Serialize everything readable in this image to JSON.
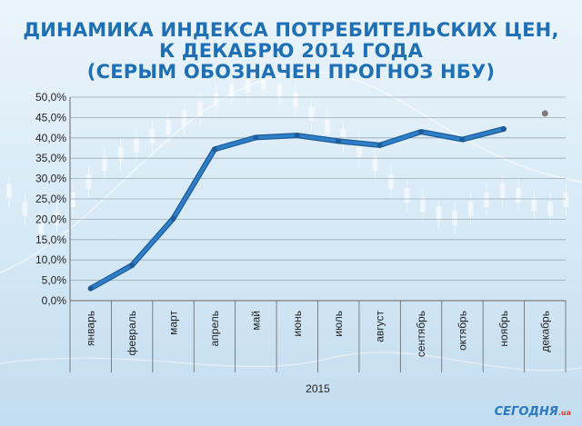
{
  "title": {
    "line1": "ДИНАМИКА ИНДЕКСА ПОТРЕБИТЕЛЬСКИХ ЦЕН,",
    "line2": "К ДЕКАБРЮ 2014 ГОДА",
    "line3": "(СЕРЫМ ОБОЗНАЧЕН ПРОГНОЗ НБУ)"
  },
  "logo": {
    "name": "СЕГОДНЯ",
    "suffix": ".ua"
  },
  "colors": {
    "title": "#1f6fb5",
    "line": "#2f7fc8",
    "forecast": "#7a7a7a"
  },
  "chart_data": {
    "type": "line",
    "year_label": "2015",
    "categories": [
      "январь",
      "февраль",
      "март",
      "апрель",
      "май",
      "июнь",
      "июль",
      "август",
      "сентябрь",
      "октябрь",
      "ноябрь",
      "декабрь"
    ],
    "y_ticks": [
      "0,0%",
      "5,0%",
      "10,0%",
      "15,0%",
      "20,0%",
      "25,0%",
      "30,0%",
      "35,0%",
      "40,0%",
      "45,0%",
      "50,0%"
    ],
    "ylim": [
      0,
      50
    ],
    "grid": true,
    "series": [
      {
        "values": [
          3.0,
          8.7,
          20.2,
          37.2,
          40.1,
          40.6,
          39.2,
          38.2,
          41.5,
          39.6,
          42.2,
          null
        ]
      }
    ],
    "forecast": {
      "category": "декабрь",
      "value": 46.0
    }
  }
}
